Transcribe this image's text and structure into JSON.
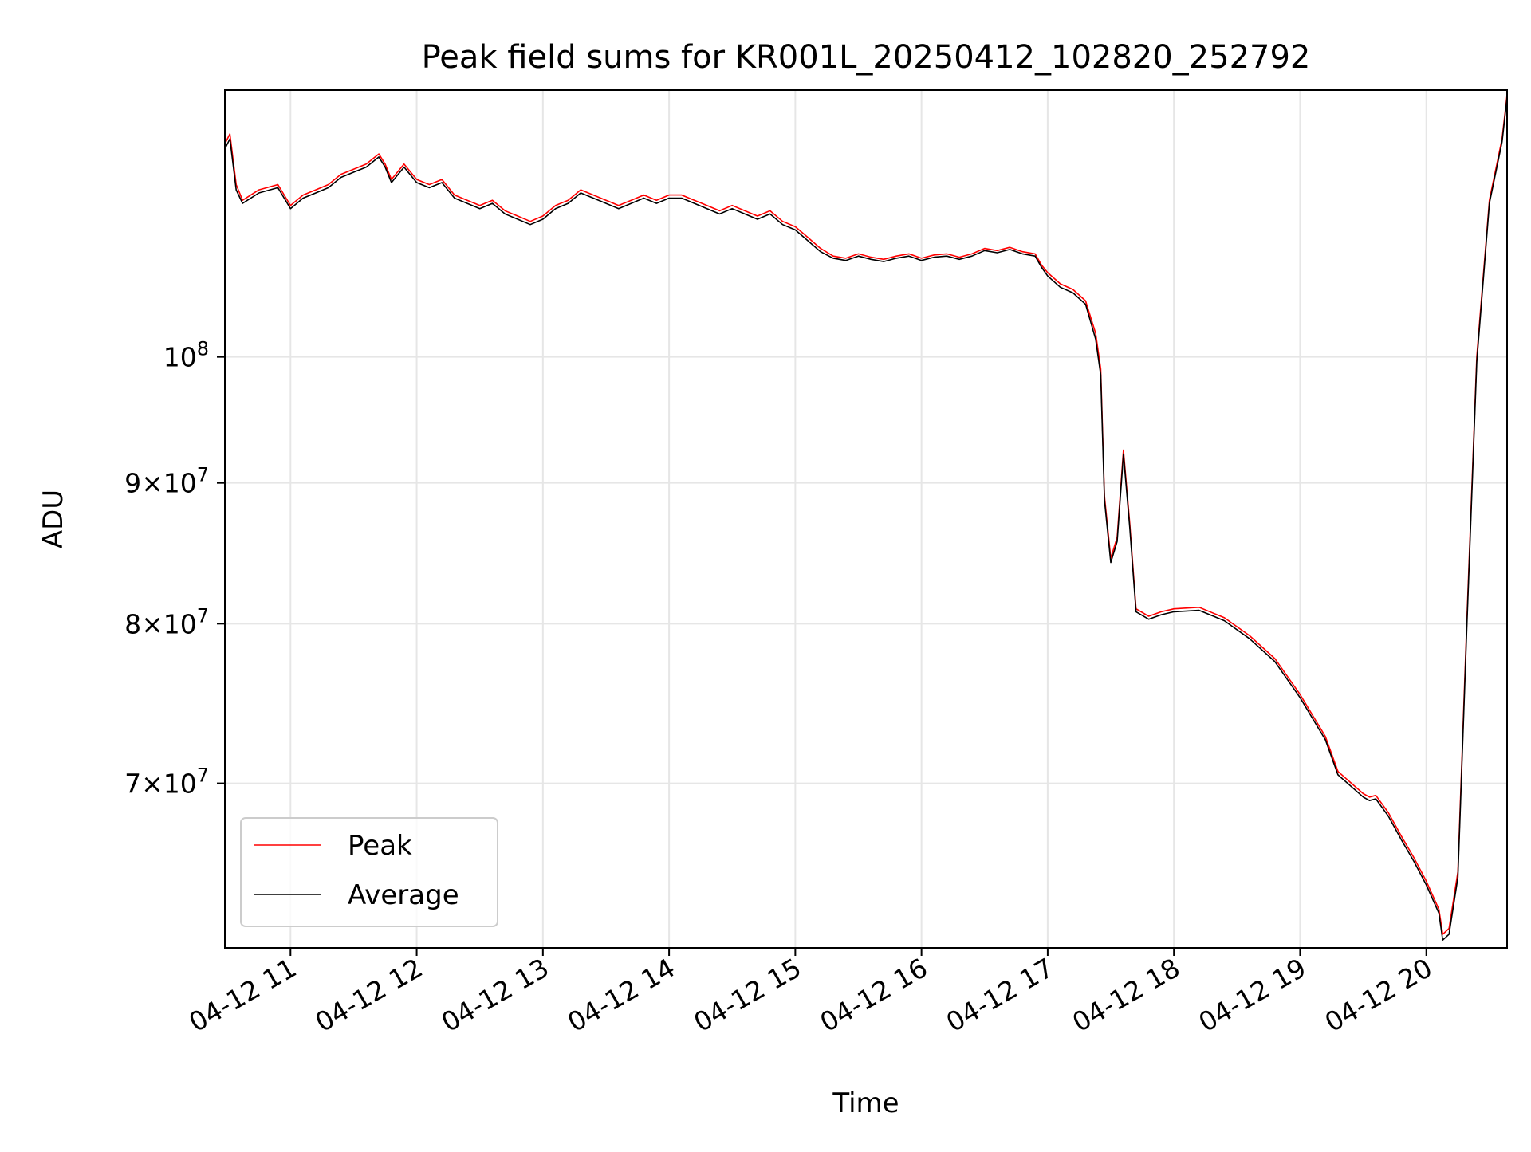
{
  "chart_data": {
    "type": "line",
    "title": "Peak field sums for KR001L_20250412_102820_252792",
    "xlabel": "Time",
    "ylabel": "ADU",
    "y_scale": "log",
    "xlim": [
      10.48,
      20.64
    ],
    "ylim": [
      61000000,
      125000000
    ],
    "grid": true,
    "legend_position": "lower-left",
    "x_ticks": [
      {
        "value": 11,
        "label": "04-12 11"
      },
      {
        "value": 12,
        "label": "04-12 12"
      },
      {
        "value": 13,
        "label": "04-12 13"
      },
      {
        "value": 14,
        "label": "04-12 14"
      },
      {
        "value": 15,
        "label": "04-12 15"
      },
      {
        "value": 16,
        "label": "04-12 16"
      },
      {
        "value": 17,
        "label": "04-12 17"
      },
      {
        "value": 18,
        "label": "04-12 18"
      },
      {
        "value": 19,
        "label": "04-12 19"
      },
      {
        "value": 20,
        "label": "04-12 20"
      }
    ],
    "y_ticks": [
      {
        "value": 100000000,
        "mant": "",
        "exp": "8"
      },
      {
        "value": 90000000,
        "mant": "9",
        "exp": "7"
      },
      {
        "value": 80000000,
        "mant": "8",
        "exp": "7"
      },
      {
        "value": 70000000,
        "mant": "7",
        "exp": "7"
      }
    ],
    "series": [
      {
        "name": "Peak",
        "color": "#ff0000",
        "x": [
          10.48,
          10.52,
          10.57,
          10.62,
          10.75,
          10.9,
          11.0,
          11.1,
          11.2,
          11.3,
          11.4,
          11.5,
          11.6,
          11.7,
          11.75,
          11.8,
          11.9,
          12.0,
          12.1,
          12.2,
          12.3,
          12.4,
          12.5,
          12.6,
          12.7,
          12.8,
          12.9,
          13.0,
          13.1,
          13.2,
          13.3,
          13.4,
          13.5,
          13.6,
          13.7,
          13.8,
          13.9,
          14.0,
          14.1,
          14.2,
          14.3,
          14.4,
          14.5,
          14.6,
          14.7,
          14.8,
          14.9,
          15.0,
          15.1,
          15.2,
          15.3,
          15.4,
          15.5,
          15.6,
          15.7,
          15.8,
          15.9,
          16.0,
          16.1,
          16.2,
          16.3,
          16.4,
          16.5,
          16.6,
          16.7,
          16.8,
          16.9,
          16.95,
          17.0,
          17.1,
          17.2,
          17.3,
          17.38,
          17.42,
          17.45,
          17.5,
          17.55,
          17.6,
          17.65,
          17.7,
          17.8,
          17.9,
          18.0,
          18.2,
          18.4,
          18.6,
          18.8,
          19.0,
          19.2,
          19.3,
          19.5,
          19.55,
          19.6,
          19.7,
          19.8,
          19.9,
          20.0,
          20.1,
          20.13,
          20.18,
          20.25,
          20.32,
          20.4,
          20.5,
          20.6,
          20.64
        ],
        "values": [
          119500000,
          120500000,
          115500000,
          114000000,
          115000000,
          115500000,
          113500000,
          114500000,
          115000000,
          115500000,
          116500000,
          117000000,
          117500000,
          118500000,
          117500000,
          116000000,
          117500000,
          116000000,
          115500000,
          116000000,
          114500000,
          114000000,
          113500000,
          114000000,
          113000000,
          112500000,
          112000000,
          112500000,
          113500000,
          114000000,
          115000000,
          114500000,
          114000000,
          113500000,
          114000000,
          114500000,
          114000000,
          114500000,
          114500000,
          114000000,
          113500000,
          113000000,
          113500000,
          113000000,
          112500000,
          113000000,
          112000000,
          111500000,
          110500000,
          109500000,
          108800000,
          108600000,
          109000000,
          108700000,
          108500000,
          108800000,
          109000000,
          108600000,
          108900000,
          109000000,
          108700000,
          109000000,
          109500000,
          109300000,
          109600000,
          109200000,
          109000000,
          108000000,
          107300000,
          106300000,
          105800000,
          104800000,
          102000000,
          99000000,
          89000000,
          84500000,
          86000000,
          92500000,
          87000000,
          81000000,
          80500000,
          80800000,
          81000000,
          81100000,
          80400000,
          79200000,
          77700000,
          75400000,
          72800000,
          70700000,
          69400000,
          69200000,
          69300000,
          68300000,
          67000000,
          65800000,
          64500000,
          63000000,
          61700000,
          62000000,
          65000000,
          80000000,
          100000000,
          114000000,
          120000000,
          124500000
        ]
      },
      {
        "name": "Average",
        "color": "#000000",
        "x": [
          10.48,
          10.52,
          10.57,
          10.62,
          10.75,
          10.9,
          11.0,
          11.1,
          11.2,
          11.3,
          11.4,
          11.5,
          11.6,
          11.7,
          11.75,
          11.8,
          11.9,
          12.0,
          12.1,
          12.2,
          12.3,
          12.4,
          12.5,
          12.6,
          12.7,
          12.8,
          12.9,
          13.0,
          13.1,
          13.2,
          13.3,
          13.4,
          13.5,
          13.6,
          13.7,
          13.8,
          13.9,
          14.0,
          14.1,
          14.2,
          14.3,
          14.4,
          14.5,
          14.6,
          14.7,
          14.8,
          14.9,
          15.0,
          15.1,
          15.2,
          15.3,
          15.4,
          15.5,
          15.6,
          15.7,
          15.8,
          15.9,
          16.0,
          16.1,
          16.2,
          16.3,
          16.4,
          16.5,
          16.6,
          16.7,
          16.8,
          16.9,
          16.95,
          17.0,
          17.1,
          17.2,
          17.3,
          17.38,
          17.42,
          17.45,
          17.5,
          17.55,
          17.6,
          17.65,
          17.7,
          17.8,
          17.9,
          18.0,
          18.2,
          18.4,
          18.6,
          18.8,
          19.0,
          19.2,
          19.3,
          19.5,
          19.55,
          19.6,
          19.7,
          19.8,
          19.9,
          20.0,
          20.1,
          20.13,
          20.18,
          20.25,
          20.32,
          20.4,
          20.5,
          20.6,
          20.64
        ],
        "values": [
          119000000,
          120000000,
          115000000,
          113700000,
          114700000,
          115200000,
          113200000,
          114200000,
          114700000,
          115200000,
          116200000,
          116700000,
          117200000,
          118200000,
          117200000,
          115700000,
          117200000,
          115700000,
          115200000,
          115700000,
          114200000,
          113700000,
          113200000,
          113700000,
          112700000,
          112200000,
          111700000,
          112200000,
          113200000,
          113700000,
          114700000,
          114200000,
          113700000,
          113200000,
          113700000,
          114200000,
          113700000,
          114200000,
          114200000,
          113700000,
          113200000,
          112700000,
          113200000,
          112700000,
          112200000,
          112700000,
          111700000,
          111200000,
          110200000,
          109200000,
          108600000,
          108400000,
          108800000,
          108500000,
          108300000,
          108600000,
          108800000,
          108400000,
          108700000,
          108800000,
          108500000,
          108800000,
          109300000,
          109100000,
          109400000,
          109000000,
          108800000,
          107800000,
          107000000,
          106000000,
          105500000,
          104500000,
          101500000,
          98500000,
          88700000,
          84200000,
          85700000,
          92200000,
          86700000,
          80800000,
          80300000,
          80600000,
          80800000,
          80900000,
          80200000,
          79000000,
          77500000,
          75200000,
          72600000,
          70500000,
          69200000,
          69000000,
          69100000,
          68100000,
          66800000,
          65600000,
          64300000,
          62800000,
          61400000,
          61700000,
          64700000,
          79600000,
          99600000,
          113700000,
          119700000,
          124200000
        ]
      }
    ]
  }
}
